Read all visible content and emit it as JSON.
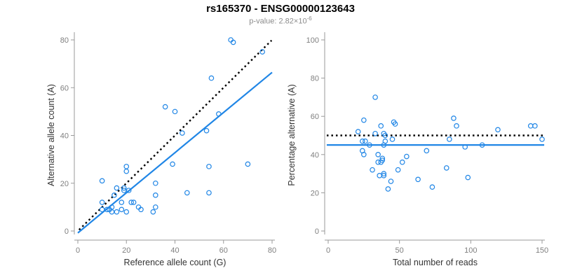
{
  "header": {
    "title": "rs165370 - ENSG00000123643",
    "subtitle_prefix": "p-value: 2.82×10",
    "subtitle_exponent": "-6"
  },
  "colors": {
    "point": "#2086E6",
    "axis": "#9a9a9a",
    "tick_label": "#7f7f7f",
    "axis_title": "#333333",
    "identity": "#000000",
    "fit": "#2086E6"
  },
  "chart_data": [
    {
      "type": "scatter",
      "title": "",
      "xlabel": "Reference allele count (G)",
      "ylabel": "Alternative allele count (A)",
      "xlim": [
        0,
        80
      ],
      "ylim": [
        0,
        80
      ],
      "xticks": [
        0,
        20,
        40,
        60,
        80
      ],
      "yticks": [
        0,
        20,
        40,
        60,
        80
      ],
      "legend": "none",
      "grid": false,
      "lines": [
        {
          "name": "identity",
          "style": "dotted",
          "color": "#000000",
          "from": [
            0.5,
            0.5
          ],
          "to": [
            79.8,
            79.8
          ]
        },
        {
          "name": "fit",
          "style": "solid",
          "color": "#2086E6",
          "from": [
            0,
            -0.8
          ],
          "to": [
            80,
            66.4
          ]
        }
      ],
      "points": [
        [
          63,
          80
        ],
        [
          64,
          79
        ],
        [
          76,
          75
        ],
        [
          55,
          64
        ],
        [
          36,
          52
        ],
        [
          40,
          50
        ],
        [
          58,
          49
        ],
        [
          53,
          42
        ],
        [
          43,
          41
        ],
        [
          39,
          28
        ],
        [
          70,
          28
        ],
        [
          54,
          27
        ],
        [
          20,
          27
        ],
        [
          20,
          25
        ],
        [
          10,
          21
        ],
        [
          32,
          20
        ],
        [
          16,
          18
        ],
        [
          19,
          18
        ],
        [
          19,
          17
        ],
        [
          21,
          17
        ],
        [
          15,
          15
        ],
        [
          45,
          16
        ],
        [
          54,
          16
        ],
        [
          32,
          15
        ],
        [
          18,
          12
        ],
        [
          22,
          12
        ],
        [
          23,
          12
        ],
        [
          10,
          12
        ],
        [
          14,
          10
        ],
        [
          25,
          10
        ],
        [
          26,
          9
        ],
        [
          32,
          10
        ],
        [
          31,
          8
        ],
        [
          10,
          9
        ],
        [
          12,
          9
        ],
        [
          13,
          9
        ],
        [
          16,
          8
        ],
        [
          18,
          9
        ],
        [
          20,
          8
        ],
        [
          14,
          8
        ]
      ]
    },
    {
      "type": "scatter",
      "title": "",
      "xlabel": "Total number of reads",
      "ylabel": "Percentage alternative (A)",
      "xlim": [
        0,
        150
      ],
      "ylim": [
        0,
        100
      ],
      "xticks": [
        0,
        50,
        100,
        150
      ],
      "yticks": [
        0,
        20,
        40,
        60,
        80,
        100
      ],
      "legend": "none",
      "grid": false,
      "lines": [
        {
          "name": "expected-50pct",
          "style": "dotted",
          "color": "#000000",
          "from": [
            -1,
            50
          ],
          "to": [
            151,
            50
          ]
        },
        {
          "name": "fit",
          "style": "solid",
          "color": "#2086E6",
          "from": [
            -1,
            45
          ],
          "to": [
            151.5,
            45
          ]
        }
      ],
      "points": [
        [
          33,
          70
        ],
        [
          25,
          58
        ],
        [
          88,
          59
        ],
        [
          90,
          55
        ],
        [
          37,
          55
        ],
        [
          46,
          57
        ],
        [
          47,
          56
        ],
        [
          21,
          52
        ],
        [
          119,
          53
        ],
        [
          142,
          55
        ],
        [
          145,
          55
        ],
        [
          33,
          51
        ],
        [
          39,
          51
        ],
        [
          40,
          50
        ],
        [
          24,
          47
        ],
        [
          26,
          47
        ],
        [
          40,
          47
        ],
        [
          45,
          48
        ],
        [
          29,
          45
        ],
        [
          39,
          45
        ],
        [
          85,
          48
        ],
        [
          150,
          48
        ],
        [
          96,
          44
        ],
        [
          108,
          45
        ],
        [
          24,
          42
        ],
        [
          25,
          40
        ],
        [
          69,
          42
        ],
        [
          35,
          40
        ],
        [
          38,
          38
        ],
        [
          35,
          36
        ],
        [
          37,
          36
        ],
        [
          38,
          37
        ],
        [
          55,
          39
        ],
        [
          52,
          36
        ],
        [
          31,
          32
        ],
        [
          49,
          32
        ],
        [
          83,
          33
        ],
        [
          36,
          29
        ],
        [
          39,
          29
        ],
        [
          39,
          30
        ],
        [
          63,
          27
        ],
        [
          98,
          28
        ],
        [
          44,
          26
        ],
        [
          42,
          22
        ],
        [
          73,
          23
        ]
      ]
    }
  ]
}
